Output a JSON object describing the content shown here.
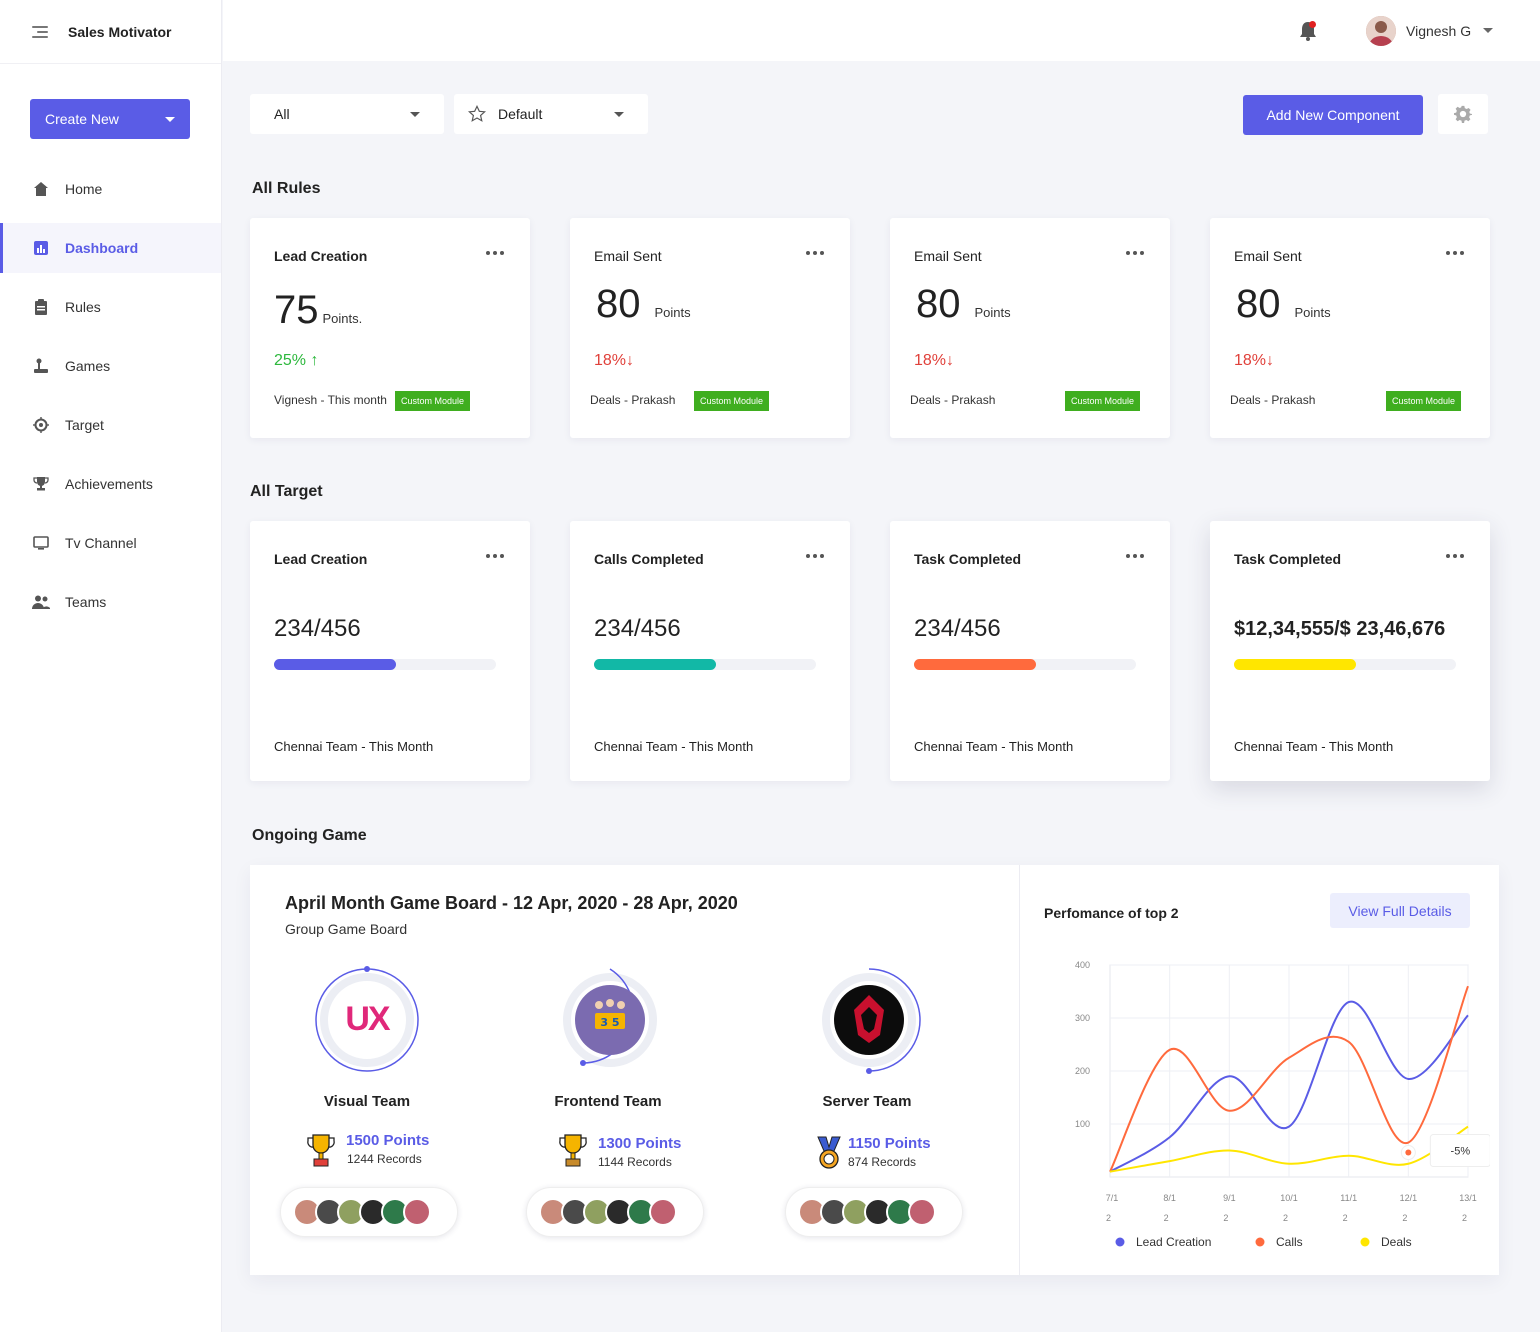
{
  "app": {
    "name": "Sales Motivator"
  },
  "sidebar": {
    "create_label": "Create New",
    "items": [
      {
        "label": "Home",
        "icon": "home-icon"
      },
      {
        "label": "Dashboard",
        "icon": "dashboard-icon",
        "active": true
      },
      {
        "label": "Rules",
        "icon": "clipboard-icon"
      },
      {
        "label": "Games",
        "icon": "joystick-icon"
      },
      {
        "label": "Target",
        "icon": "target-icon"
      },
      {
        "label": "Achievements",
        "icon": "trophy-icon"
      },
      {
        "label": "Tv Channel",
        "icon": "monitor-icon"
      },
      {
        "label": "Teams",
        "icon": "people-icon"
      }
    ]
  },
  "header": {
    "user_name": "Vignesh G"
  },
  "toolbar": {
    "filter_value": "All",
    "view_value": "Default",
    "add_label": "Add New Component"
  },
  "rules": {
    "title": "All Rules",
    "cards": [
      {
        "title": "Lead Creation",
        "value": "75",
        "unit": "Points.",
        "trend": "25% ↑",
        "dir": "up",
        "footer": "Vignesh - This month",
        "badge": "Custom Module"
      },
      {
        "title": "Email Sent",
        "value": "80",
        "unit": "Points",
        "trend": "18%↓",
        "dir": "down",
        "footer": "Deals - Prakash",
        "badge": "Custom Module"
      },
      {
        "title": "Email Sent",
        "value": "80",
        "unit": "Points",
        "trend": "18%↓",
        "dir": "down",
        "footer": "Deals - Prakash",
        "badge": "Custom Module"
      },
      {
        "title": "Email Sent",
        "value": "80",
        "unit": "Points",
        "trend": "18%↓",
        "dir": "down",
        "footer": "Deals - Prakash",
        "badge": "Custom Module"
      }
    ]
  },
  "targets": {
    "title": "All Target",
    "cards": [
      {
        "title": "Lead Creation",
        "value": "234/456",
        "progress": 0.55,
        "color": "#5a5ce6",
        "footer": "Chennai Team  -  This Month"
      },
      {
        "title": "Calls Completed",
        "value": "234/456",
        "progress": 0.55,
        "color": "#12b8a6",
        "footer": "Chennai Team  -  This Month"
      },
      {
        "title": "Task Completed",
        "value": "234/456",
        "progress": 0.55,
        "color": "#ff6a3d",
        "footer": "Chennai Team  -  This Month"
      },
      {
        "title": "Task Completed",
        "value": "$12,34,555/$ 23,46,676",
        "progress": 0.55,
        "color": "#ffe600",
        "footer": "Chennai Team  -  This Month"
      }
    ]
  },
  "game": {
    "section_title": "Ongoing Game",
    "title": "April Month Game Board - 12 Apr, 2020 -  28 Apr, 2020",
    "subtitle": "Group Game Board",
    "teams": [
      {
        "name": "Visual Team",
        "points": "1500 Points",
        "records": "1244 Records",
        "logo_text": "UX"
      },
      {
        "name": "Frontend Team",
        "points": "1300 Points",
        "records": "1144 Records"
      },
      {
        "name": "Server Team",
        "points": "1150 Points",
        "records": "874 Records"
      }
    ],
    "performance_title": "Perfomance of top 2",
    "view_label": "View Full Details"
  },
  "chart_data": {
    "type": "line",
    "y_ticks": [
      "400",
      "300",
      "200",
      "100"
    ],
    "x_ticks": [
      "7/1",
      "8/1",
      "9/1",
      "10/1",
      "11/1",
      "12/1",
      "13/1"
    ],
    "x_sub": "2",
    "ylim": [
      0,
      400
    ],
    "annotation": "-5%",
    "series": [
      {
        "name": "Lead Creation",
        "color": "#5a5ce6",
        "values": [
          10,
          75,
          190,
          95,
          330,
          185,
          305
        ]
      },
      {
        "name": "Calls",
        "color": "#ff6a3d",
        "values": [
          10,
          240,
          125,
          225,
          255,
          65,
          360
        ]
      },
      {
        "name": "Deals",
        "color": "#ffe600",
        "values": [
          10,
          30,
          50,
          25,
          40,
          25,
          95
        ]
      }
    ]
  }
}
